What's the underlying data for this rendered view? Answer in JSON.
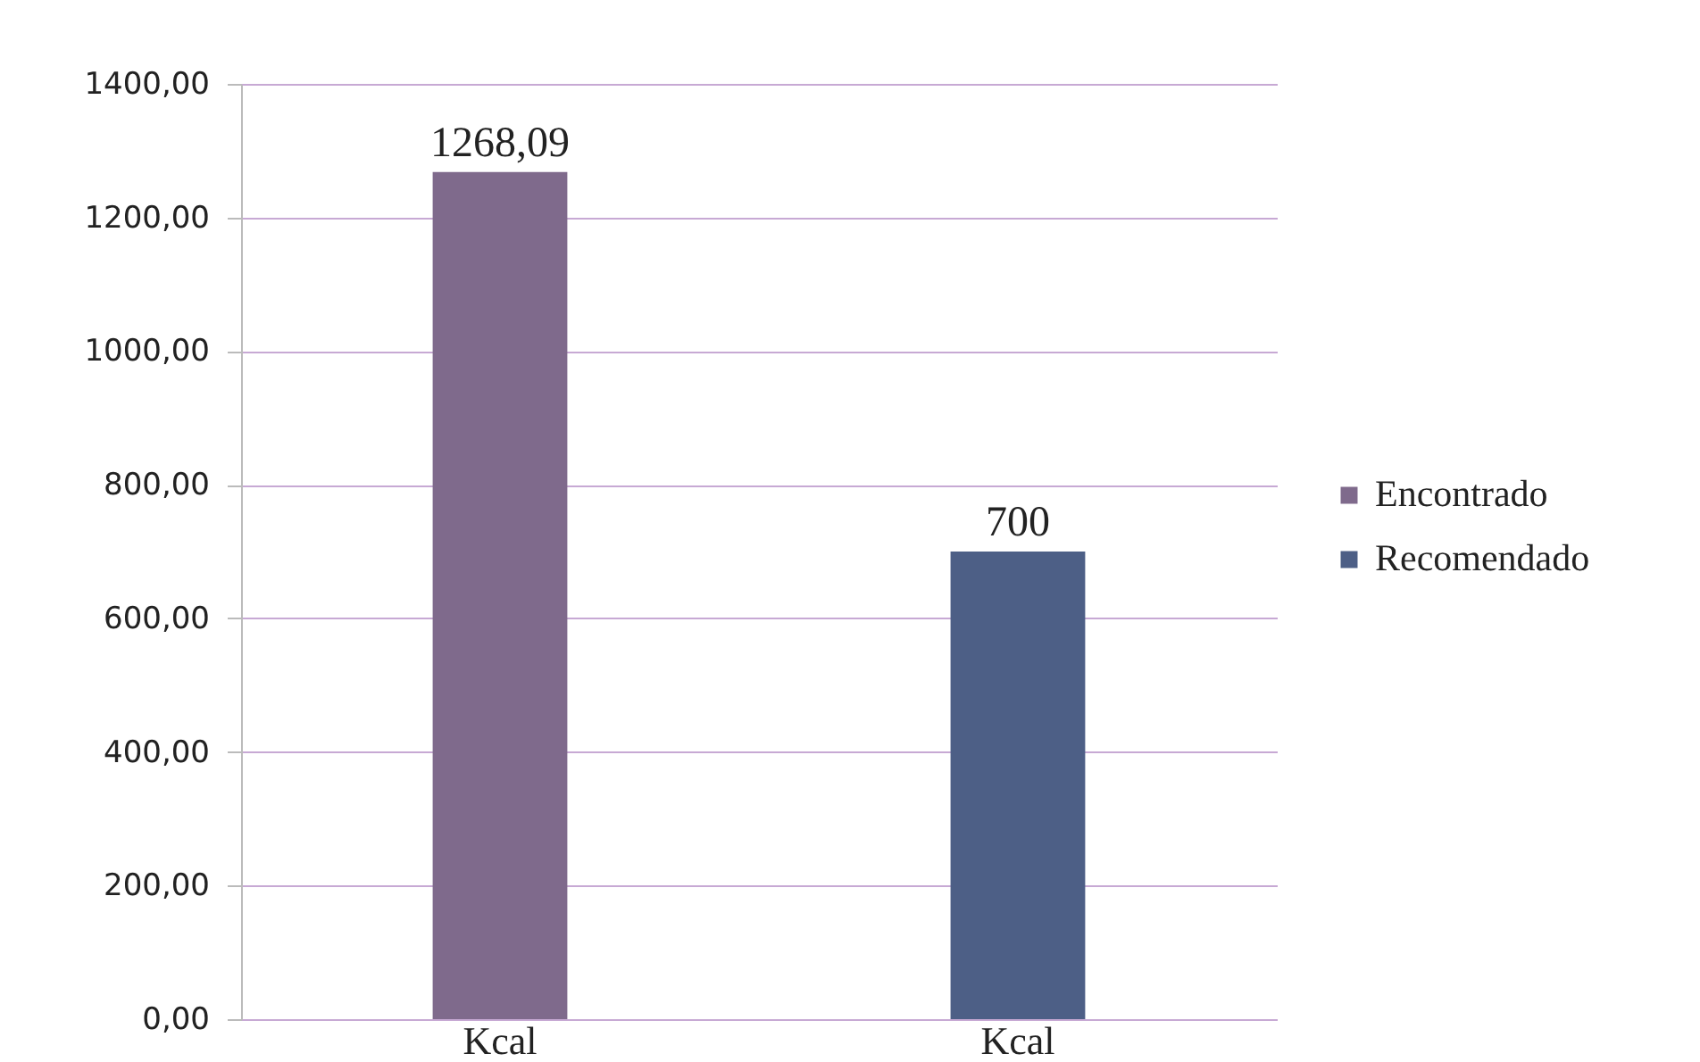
{
  "chart_data": {
    "type": "bar",
    "categories": [
      "Kcal",
      "Kcal"
    ],
    "series": [
      {
        "name": "Encontrado",
        "color": "#7f6a8c",
        "values": [
          1268.09,
          null
        ],
        "value_labels": [
          "1268,09",
          null
        ]
      },
      {
        "name": "Recomendado",
        "color": "#4d5f86",
        "values": [
          null,
          700
        ],
        "value_labels": [
          null,
          "700"
        ]
      }
    ],
    "ylim": [
      0,
      1400
    ],
    "yticks": [
      {
        "value": 0,
        "label": "0,00"
      },
      {
        "value": 200,
        "label": "200,00"
      },
      {
        "value": 400,
        "label": "400,00"
      },
      {
        "value": 600,
        "label": "600,00"
      },
      {
        "value": 800,
        "label": "800,00"
      },
      {
        "value": 1000,
        "label": "1000,00"
      },
      {
        "value": 1200,
        "label": "1200,00"
      },
      {
        "value": 1400,
        "label": "1400,00"
      }
    ],
    "grid": "y",
    "legend": "right"
  }
}
